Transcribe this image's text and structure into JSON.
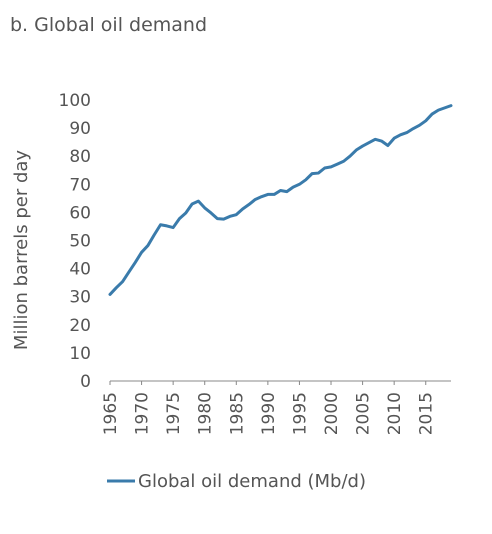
{
  "panel_title": "b. Global oil demand",
  "chart_data": {
    "type": "line",
    "title": "b. Global oil demand",
    "ylabel": "Million barrels per day",
    "xlabel": "",
    "xlim": [
      1965,
      2019
    ],
    "ylim": [
      0,
      100
    ],
    "x_ticks": [
      "1965",
      "1970",
      "1975",
      "1980",
      "1985",
      "1990",
      "1995",
      "2000",
      "2005",
      "2010",
      "2015"
    ],
    "y_ticks": [
      "0",
      "10",
      "20",
      "30",
      "40",
      "50",
      "60",
      "70",
      "80",
      "90",
      "100"
    ],
    "grid": false,
    "legend_position": "bottom",
    "series": [
      {
        "name": "Global oil demand (Mb/d)",
        "color": "#3a7bab",
        "x": [
          1965,
          1966,
          1967,
          1968,
          1969,
          1970,
          1971,
          1972,
          1973,
          1974,
          1975,
          1976,
          1977,
          1978,
          1979,
          1980,
          1981,
          1982,
          1983,
          1984,
          1985,
          1986,
          1987,
          1988,
          1989,
          1990,
          1991,
          1992,
          1993,
          1994,
          1995,
          1996,
          1997,
          1998,
          1999,
          2000,
          2001,
          2002,
          2003,
          2004,
          2005,
          2006,
          2007,
          2008,
          2009,
          2010,
          2011,
          2012,
          2013,
          2014,
          2015,
          2016,
          2017,
          2018,
          2019
        ],
        "values": [
          30.8,
          33.2,
          35.4,
          38.8,
          42.2,
          45.8,
          48.2,
          52.0,
          55.6,
          55.2,
          54.6,
          57.8,
          59.8,
          63.0,
          64.0,
          61.6,
          59.8,
          57.8,
          57.6,
          58.6,
          59.2,
          61.2,
          62.8,
          64.6,
          65.6,
          66.4,
          66.4,
          67.8,
          67.4,
          69.0,
          70.0,
          71.6,
          73.8,
          74.0,
          75.8,
          76.2,
          77.2,
          78.2,
          80.0,
          82.2,
          83.6,
          84.8,
          86.0,
          85.4,
          83.8,
          86.4,
          87.6,
          88.4,
          89.8,
          91.0,
          92.6,
          95.0,
          96.4,
          97.2,
          98.0
        ]
      }
    ]
  }
}
